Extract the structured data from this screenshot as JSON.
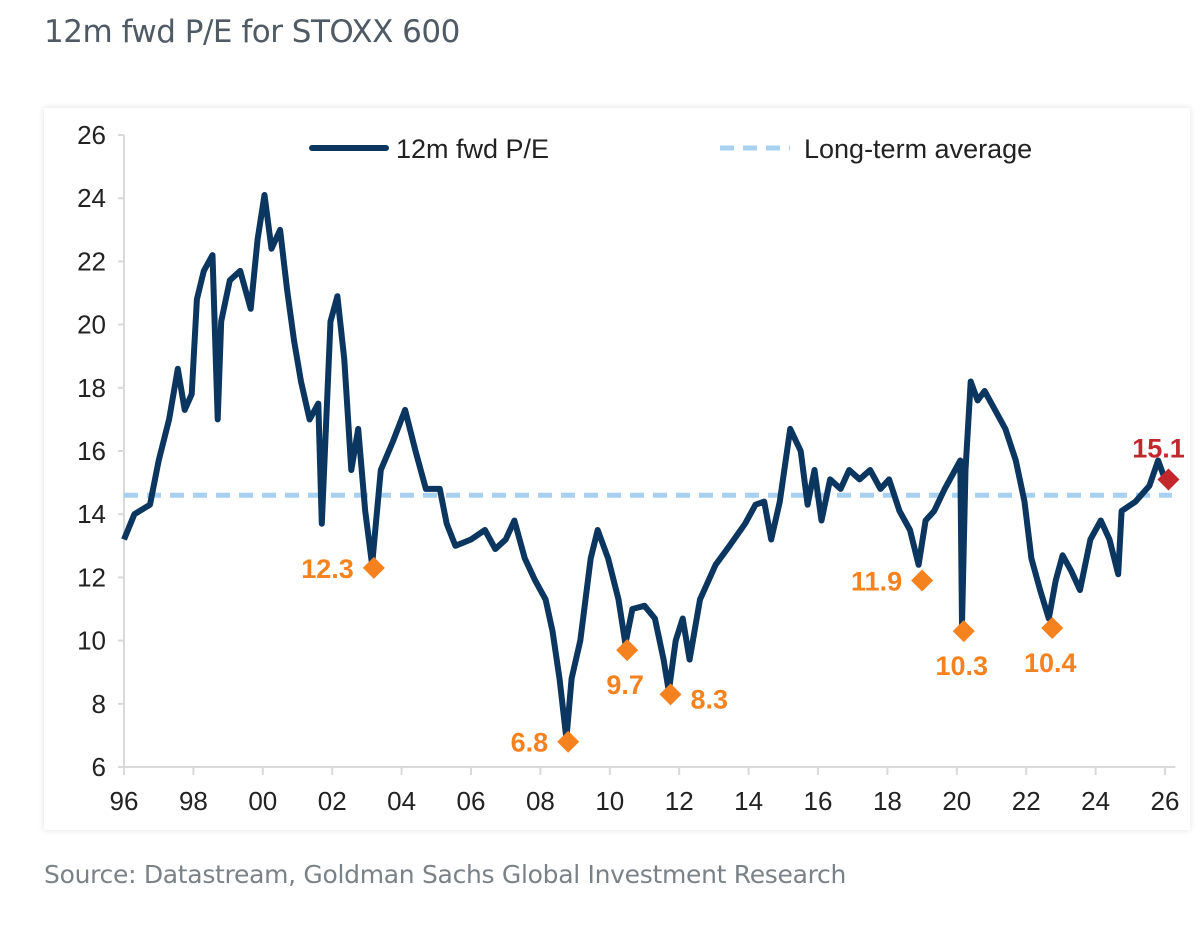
{
  "title": "12m fwd P/E for STOXX 600",
  "source": "Source: Datastream, Goldman Sachs Global Investment Research",
  "colors": {
    "series": "#0b3660",
    "average": "#a8d0f0",
    "trough": "#f5821f",
    "latest": "#c1272d",
    "axis": "#d9d9d9",
    "text": "#222222"
  },
  "chart_data": {
    "type": "line",
    "title": "12m fwd P/E for STOXX 600",
    "xlabel": "",
    "ylabel": "",
    "xlim": [
      1996,
      2026.3
    ],
    "ylim": [
      6,
      26
    ],
    "yticks": [
      6,
      8,
      10,
      12,
      14,
      16,
      18,
      20,
      22,
      24,
      26
    ],
    "xticks": [
      {
        "x": 1996,
        "label": "96"
      },
      {
        "x": 1998,
        "label": "98"
      },
      {
        "x": 2000,
        "label": "00"
      },
      {
        "x": 2002,
        "label": "02"
      },
      {
        "x": 2004,
        "label": "04"
      },
      {
        "x": 2006,
        "label": "06"
      },
      {
        "x": 2008,
        "label": "08"
      },
      {
        "x": 2010,
        "label": "10"
      },
      {
        "x": 2012,
        "label": "12"
      },
      {
        "x": 2014,
        "label": "14"
      },
      {
        "x": 2016,
        "label": "16"
      },
      {
        "x": 2018,
        "label": "18"
      },
      {
        "x": 2020,
        "label": "20"
      },
      {
        "x": 2022,
        "label": "22"
      },
      {
        "x": 2024,
        "label": "24"
      },
      {
        "x": 2026,
        "label": "26"
      }
    ],
    "grid": false,
    "legend": {
      "placement": "top",
      "entries": [
        "12m fwd P/E",
        "Long-term average"
      ]
    },
    "series": [
      {
        "name": "12m fwd P/E",
        "style": "solid",
        "x": [
          1996,
          1996.3,
          1996.75,
          1997,
          1997.3,
          1997.55,
          1997.75,
          1997.95,
          1998.1,
          1998.3,
          1998.55,
          1998.7,
          1998.8,
          1999.05,
          1999.35,
          1999.65,
          1999.85,
          2000.05,
          2000.25,
          2000.5,
          2000.7,
          2000.9,
          2001.1,
          2001.35,
          2001.6,
          2001.7,
          2001.95,
          2002.15,
          2002.35,
          2002.55,
          2002.75,
          2002.95,
          2003.15,
          2003.4,
          2003.75,
          2004.1,
          2004.4,
          2004.7,
          2005.1,
          2005.3,
          2005.55,
          2006,
          2006.4,
          2006.7,
          2007,
          2007.25,
          2007.55,
          2007.85,
          2008.15,
          2008.35,
          2008.55,
          2008.75,
          2008.9,
          2009.15,
          2009.45,
          2009.65,
          2009.95,
          2010.25,
          2010.45,
          2010.65,
          2011,
          2011.3,
          2011.55,
          2011.7,
          2011.9,
          2012.1,
          2012.3,
          2012.6,
          2013.05,
          2013.45,
          2013.9,
          2014.2,
          2014.45,
          2014.65,
          2014.9,
          2015.2,
          2015.5,
          2015.7,
          2015.9,
          2016.1,
          2016.35,
          2016.65,
          2016.9,
          2017.2,
          2017.5,
          2017.8,
          2018.05,
          2018.35,
          2018.65,
          2018.9,
          2019.1,
          2019.35,
          2019.65,
          2019.95,
          2020.1,
          2020.15,
          2020.25,
          2020.4,
          2020.6,
          2020.8,
          2021.1,
          2021.4,
          2021.7,
          2021.95,
          2022.15,
          2022.4,
          2022.65,
          2022.85,
          2023.05,
          2023.3,
          2023.55,
          2023.85,
          2024.15,
          2024.4,
          2024.65,
          2024.75,
          2025.15,
          2025.55,
          2025.8,
          2026
        ],
        "values": [
          13.2,
          14.0,
          14.3,
          15.7,
          17.0,
          18.6,
          17.3,
          17.8,
          20.8,
          21.7,
          22.2,
          17.0,
          20.1,
          21.4,
          21.7,
          20.5,
          22.7,
          24.1,
          22.4,
          23.0,
          21.1,
          19.5,
          18.2,
          17.0,
          17.5,
          13.7,
          20.1,
          20.9,
          18.9,
          15.4,
          16.7,
          14.1,
          12.4,
          15.4,
          16.3,
          17.3,
          16.0,
          14.8,
          14.8,
          13.7,
          13.0,
          13.2,
          13.5,
          12.9,
          13.2,
          13.8,
          12.6,
          11.9,
          11.3,
          10.3,
          8.8,
          6.9,
          8.8,
          10.0,
          12.6,
          13.5,
          12.6,
          11.3,
          9.9,
          11.0,
          11.1,
          10.7,
          9.4,
          8.4,
          10.0,
          10.7,
          9.4,
          11.3,
          12.4,
          13.0,
          13.7,
          14.3,
          14.4,
          13.2,
          14.4,
          16.7,
          16.0,
          14.3,
          15.4,
          13.8,
          15.1,
          14.8,
          15.4,
          15.1,
          15.4,
          14.8,
          15.1,
          14.1,
          13.5,
          12.4,
          13.8,
          14.1,
          14.8,
          15.4,
          15.7,
          10.5,
          15.4,
          18.2,
          17.6,
          17.9,
          17.3,
          16.7,
          15.7,
          14.4,
          12.6,
          11.6,
          10.7,
          11.9,
          12.7,
          12.2,
          11.6,
          13.2,
          13.8,
          13.2,
          12.1,
          14.1,
          14.4,
          14.9,
          15.7,
          15.1
        ]
      },
      {
        "name": "Long-term average",
        "style": "dashed",
        "x": [
          1996,
          2026.2
        ],
        "values": [
          14.6,
          14.6
        ]
      }
    ],
    "annotations": [
      {
        "x": 2003.2,
        "y": 12.3,
        "label": "12.3",
        "kind": "trough",
        "label_side": "left"
      },
      {
        "x": 2008.8,
        "y": 6.8,
        "label": "6.8",
        "kind": "trough",
        "label_side": "left"
      },
      {
        "x": 2010.5,
        "y": 9.7,
        "label": "9.7",
        "kind": "trough",
        "label_side": "below"
      },
      {
        "x": 2011.75,
        "y": 8.3,
        "label": "8.3",
        "kind": "trough",
        "label_side": "right"
      },
      {
        "x": 2019.0,
        "y": 11.9,
        "label": "11.9",
        "kind": "trough",
        "label_side": "left"
      },
      {
        "x": 2020.2,
        "y": 10.3,
        "label": "10.3",
        "kind": "trough",
        "label_side": "below"
      },
      {
        "x": 2022.75,
        "y": 10.4,
        "label": "10.4",
        "kind": "trough",
        "label_side": "below"
      },
      {
        "x": 2026.1,
        "y": 15.1,
        "label": "15.1",
        "kind": "latest",
        "label_side": "above"
      }
    ]
  }
}
